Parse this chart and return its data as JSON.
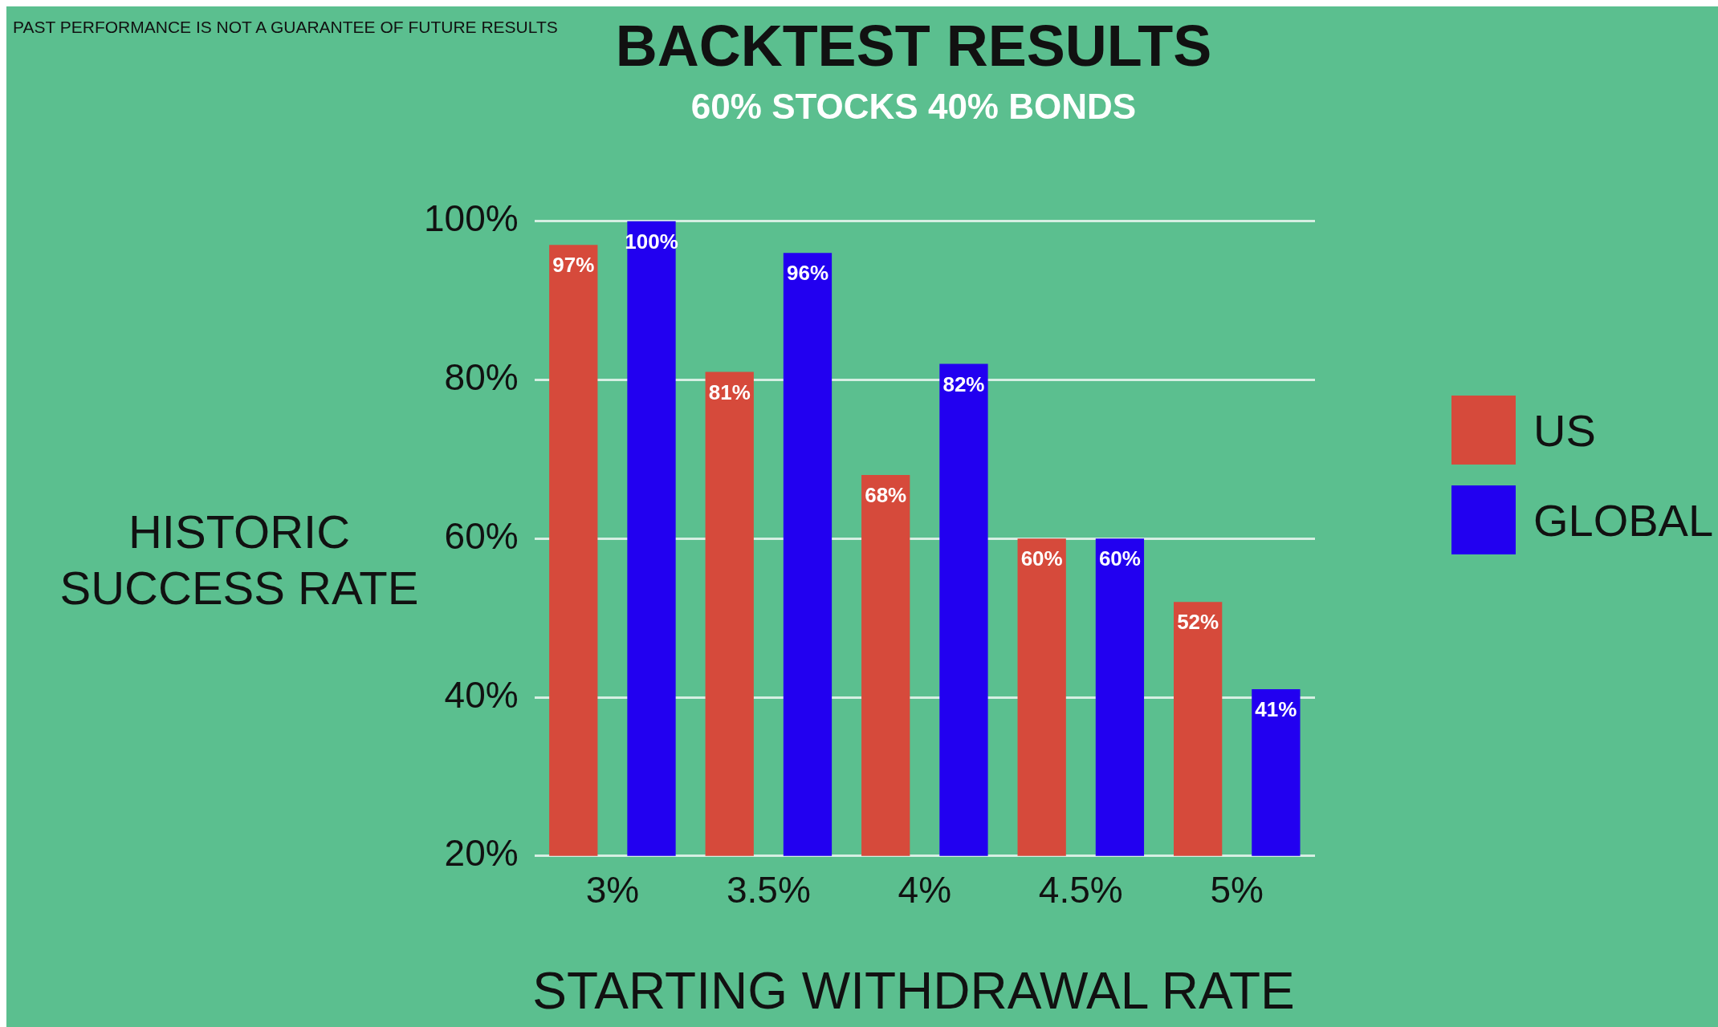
{
  "chart_data": {
    "type": "bar",
    "title": "BACKTEST RESULTS",
    "subtitle": "60% STOCKS 40% BONDS",
    "xlabel": "STARTING WITHDRAWAL RATE",
    "ylabel": "HISTORIC SUCCESS RATE",
    "annotations": [
      "PAST PERFORMANCE IS NOT A GUARANTEE OF FUTURE RESULTS"
    ],
    "categories": [
      "3%",
      "3.5%",
      "4%",
      "4.5%",
      "5%"
    ],
    "series": [
      {
        "name": "US",
        "color": "#d64a3b",
        "values": [
          97,
          81,
          68,
          60,
          52
        ],
        "value_labels": [
          "97%",
          "81%",
          "68%",
          "60%",
          "52%"
        ]
      },
      {
        "name": "GLOBAL",
        "color": "#2200f0",
        "values": [
          100,
          96,
          82,
          60,
          41
        ],
        "value_labels": [
          "100%",
          "96%",
          "82%",
          "60%",
          "41%"
        ]
      }
    ],
    "ylim": [
      20,
      100
    ],
    "yticks": [
      {
        "value": 20,
        "label": "20%"
      },
      {
        "value": 40,
        "label": "40%"
      },
      {
        "value": 60,
        "label": "60%"
      },
      {
        "value": 80,
        "label": "80%"
      },
      {
        "value": 100,
        "label": "100%"
      }
    ],
    "grid": "y",
    "legend": "right"
  }
}
